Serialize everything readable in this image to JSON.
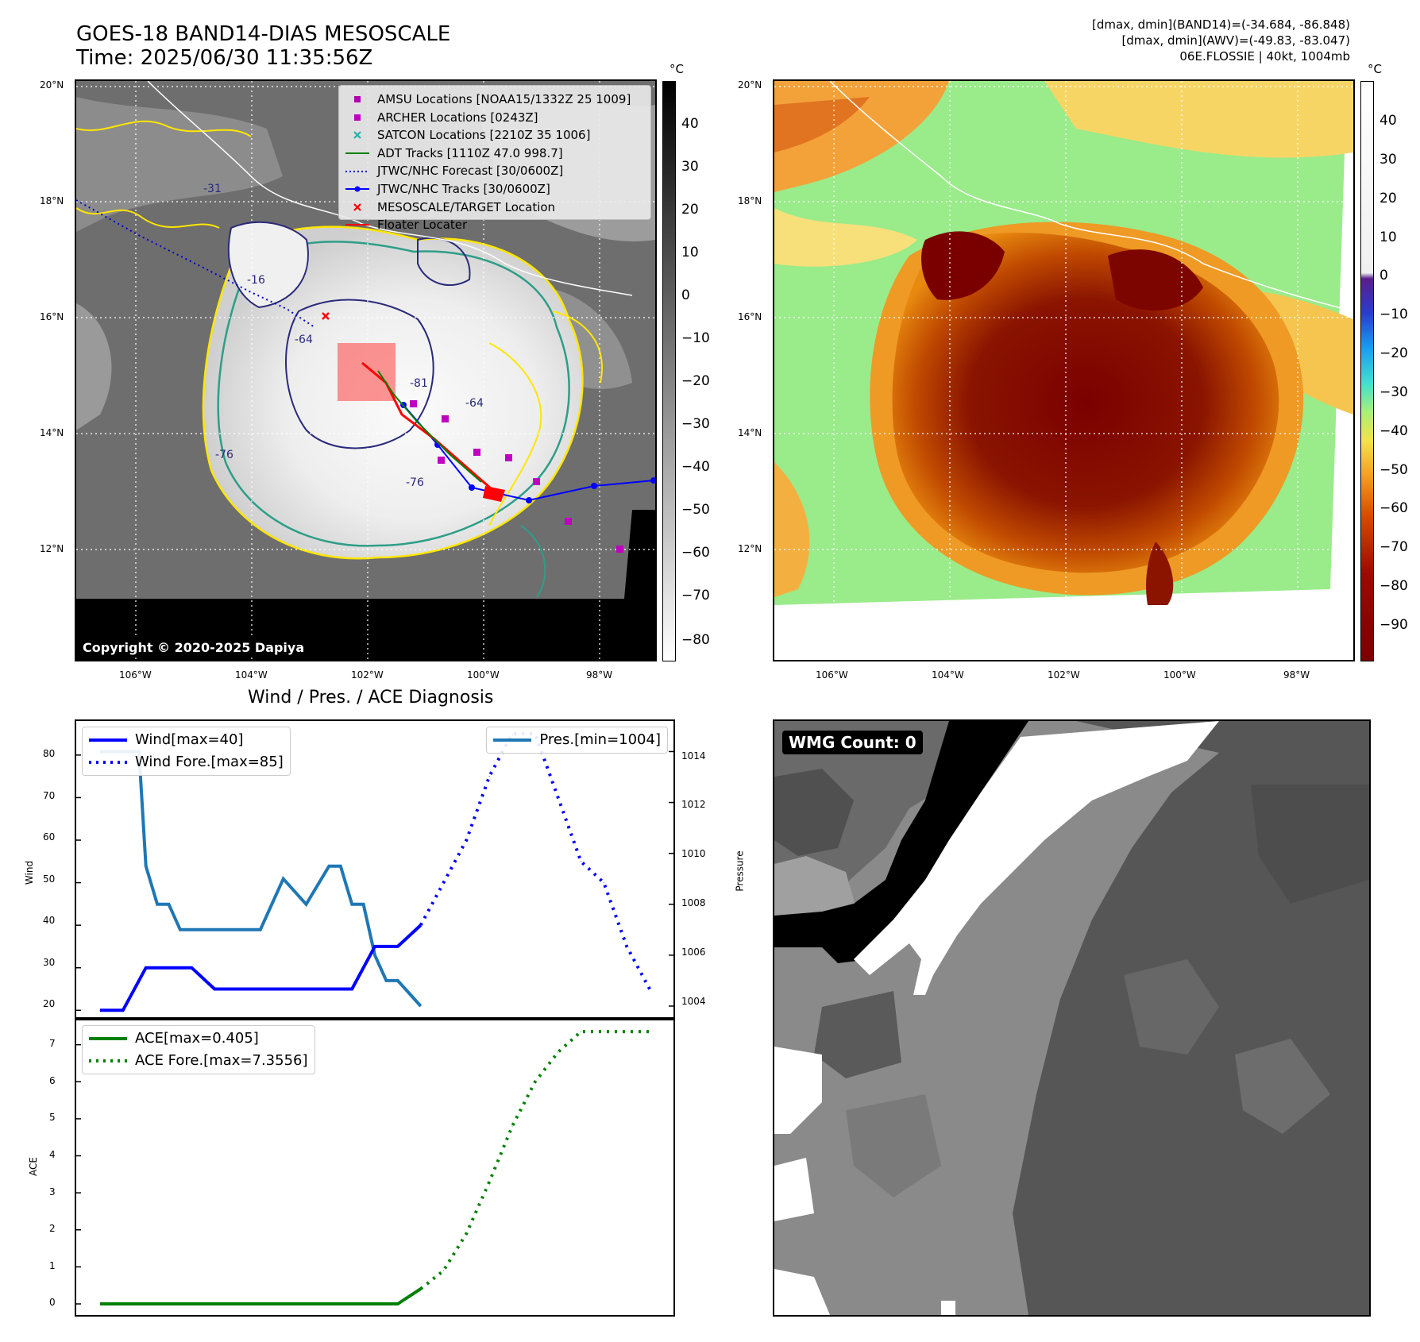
{
  "header": {
    "title_line1": "GOES-18 BAND14-DIAS MESOSCALE",
    "title_line2": "Time: 2025/06/30 11:35:56Z",
    "info_line1": "[dmax, dmin](BAND14)=(-34.684, -86.848)",
    "info_line2": "[dmax, dmin](AWV)=(-49.83, -83.047)",
    "info_line3": "06E.FLOSSIE | 40kt, 1004mb"
  },
  "map": {
    "lat_labels": [
      "20°N",
      "18°N",
      "16°N",
      "14°N",
      "12°N"
    ],
    "lon_labels": [
      "106°W",
      "104°W",
      "102°W",
      "100°W",
      "98°W"
    ],
    "copyright": "Copyright © 2020-2025 Dapiya",
    "contour_labels": [
      "-16",
      "-81",
      "-64",
      "-76",
      "-76",
      "-31",
      "-64"
    ],
    "legend": [
      {
        "label": "AMSU Locations [NOAA15/1332Z 25 1009]",
        "color": "#b000b0",
        "marker": "square"
      },
      {
        "label": "ARCHER Locations [0243Z]",
        "color": "#c000c0",
        "marker": "square"
      },
      {
        "label": "SATCON Locations [2210Z 35 1006]",
        "color": "#20b2aa",
        "marker": "x"
      },
      {
        "label": "ADT Tracks [1110Z 47.0 998.7]",
        "color": "#008000",
        "marker": "line"
      },
      {
        "label": "JTWC/NHC Forecast [30/0600Z]",
        "color": "#0000cc",
        "marker": "dotted"
      },
      {
        "label": "JTWC/NHC Tracks [30/0600Z]",
        "color": "#0000ff",
        "marker": "line-dot"
      },
      {
        "label": "MESOSCALE/TARGET Location",
        "color": "#ff0000",
        "marker": "x"
      },
      {
        "label": "Floater Locater",
        "color": "#ff0000",
        "marker": "line"
      }
    ]
  },
  "colorbar_left": {
    "unit": "°C",
    "ticks": [
      "40",
      "30",
      "20",
      "10",
      "0",
      "−10",
      "−20",
      "−30",
      "−40",
      "−50",
      "−60",
      "−70",
      "−80"
    ]
  },
  "colorbar_right": {
    "unit": "°C",
    "ticks": [
      "40",
      "30",
      "20",
      "10",
      "0",
      "−10",
      "−20",
      "−30",
      "−40",
      "−50",
      "−60",
      "−70",
      "−80",
      "−90"
    ]
  },
  "diagnosis": {
    "title": "Wind / Pres. / ACE Diagnosis",
    "wind_ylabel": "Wind",
    "pres_ylabel": "Pressure",
    "ace_ylabel": "ACE",
    "legend_wind": "Wind[max=40]",
    "legend_wind_fore": "Wind Fore.[max=85]",
    "legend_pres": "Pres.[min=1004]",
    "legend_ace": "ACE[max=0.405]",
    "legend_ace_fore": "ACE Fore.[max=7.3556]",
    "wind_ticks": [
      "80",
      "70",
      "60",
      "50",
      "40",
      "30",
      "20"
    ],
    "pres_ticks": [
      "1014",
      "1012",
      "1010",
      "1008",
      "1006",
      "1004"
    ],
    "ace_ticks": [
      "7",
      "6",
      "5",
      "4",
      "3",
      "2",
      "1",
      "0"
    ]
  },
  "wmg": {
    "label": "WMG Count: 0"
  },
  "chart_data": [
    {
      "type": "line",
      "title": "Wind / Pres. / ACE Diagnosis",
      "ylabel": "Wind",
      "ylim": [
        18,
        88
      ],
      "series": [
        {
          "name": "Wind[max=40]",
          "color": "#0000ff",
          "style": "solid",
          "x": [
            0,
            1,
            2,
            3,
            4,
            5,
            6,
            7,
            8,
            9,
            10,
            11,
            12,
            13,
            14
          ],
          "values": [
            20,
            20,
            30,
            30,
            30,
            25,
            25,
            25,
            25,
            25,
            25,
            25,
            35,
            35,
            40
          ]
        },
        {
          "name": "Wind Fore.[max=85]",
          "color": "#0000ff",
          "style": "dotted",
          "x": [
            14,
            15,
            16,
            17,
            18,
            19,
            20,
            21,
            22,
            23,
            24
          ],
          "values": [
            40,
            50,
            60,
            75,
            85,
            85,
            70,
            55,
            50,
            35,
            25
          ]
        }
      ]
    },
    {
      "type": "line",
      "ylabel": "Pressure",
      "ylim": [
        1003.5,
        1015.2
      ],
      "series": [
        {
          "name": "Pres.[min=1004]",
          "color": "#1f77b4",
          "style": "solid",
          "x": [
            0,
            1,
            1.7,
            2,
            2.5,
            3,
            3.5,
            4,
            5,
            6,
            7,
            8,
            9,
            10,
            10.5,
            11,
            11.5,
            12,
            12.5,
            13,
            13.5,
            14
          ],
          "values": [
            1014,
            1014,
            1014,
            1009.5,
            1008,
            1008,
            1007,
            1007,
            1007,
            1007,
            1007,
            1009,
            1008,
            1009.5,
            1009.5,
            1008,
            1008,
            1006,
            1005,
            1005,
            1004.5,
            1004
          ]
        }
      ]
    },
    {
      "type": "line",
      "ylabel": "ACE",
      "ylim": [
        -0.3,
        7.7
      ],
      "series": [
        {
          "name": "ACE[max=0.405]",
          "color": "#008000",
          "style": "solid",
          "x": [
            0,
            13,
            14
          ],
          "values": [
            0,
            0,
            0.405
          ]
        },
        {
          "name": "ACE Fore.[max=7.3556]",
          "color": "#008000",
          "style": "dotted",
          "x": [
            14,
            15,
            16,
            17,
            18,
            19,
            20,
            21,
            22,
            23,
            24
          ],
          "values": [
            0.405,
            0.9,
            1.9,
            3.3,
            4.8,
            6.0,
            6.8,
            7.3556,
            7.3556,
            7.3556,
            7.3556
          ]
        }
      ]
    }
  ]
}
